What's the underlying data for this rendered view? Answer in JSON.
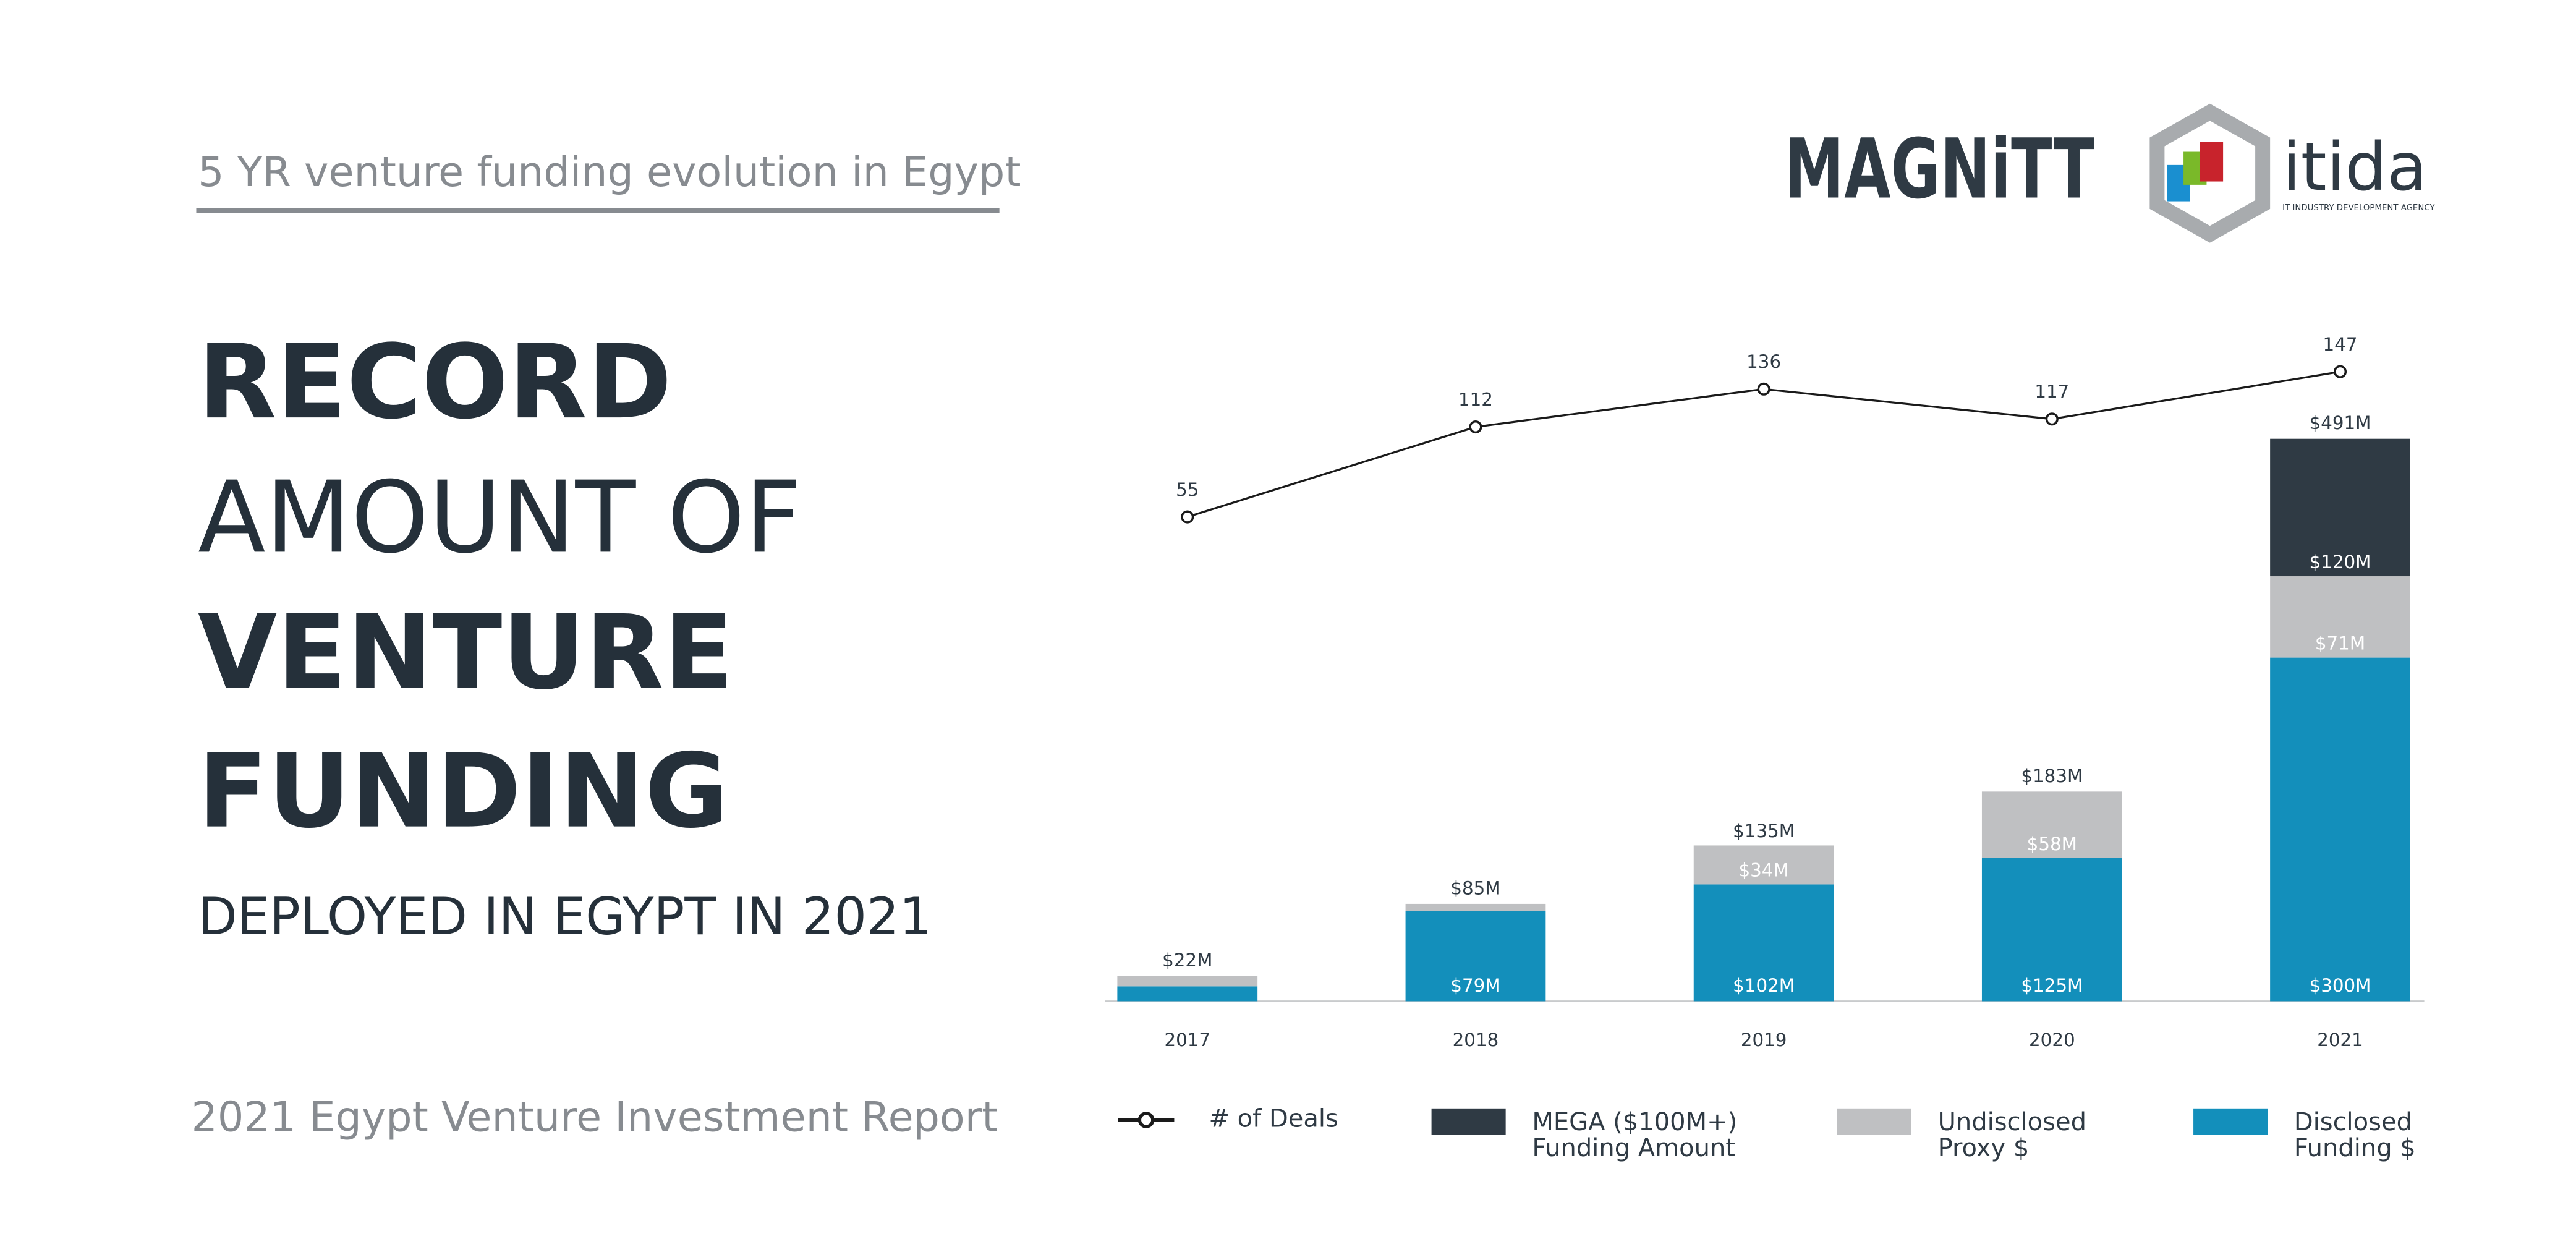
{
  "header": {
    "subtitle": "5 YR venture funding evolution in Egypt",
    "headline": [
      "RECORD",
      "AMOUNT OF",
      "VENTURE",
      "FUNDING"
    ],
    "tagline": "DEPLOYED IN EGYPT IN 2021",
    "report": "2021 Egypt Venture Investment Report"
  },
  "logos": {
    "magnitt": "MAGNiTT",
    "itida": "itida",
    "itida_sub": "IT INDUSTRY DEVELOPMENT AGENCY"
  },
  "chart_data": {
    "type": "bar",
    "categories": [
      "2017",
      "2018",
      "2019",
      "2020",
      "2021"
    ],
    "series": [
      {
        "name": "# of Deals",
        "type": "line",
        "color": "#1a1a1a",
        "values": [
          55,
          112,
          136,
          117,
          147
        ]
      },
      {
        "name": "MEGA ($100M+)\nFunding Amount",
        "color": "#2f3a44",
        "values": [
          null,
          null,
          null,
          null,
          120
        ],
        "value_labels": [
          null,
          null,
          null,
          null,
          "$120M"
        ]
      },
      {
        "name": "Undisclosed\nProxy $",
        "color": "#bfc0c2",
        "values": [
          9,
          6,
          34,
          58,
          71
        ],
        "value_labels": [
          null,
          null,
          "$34M",
          "$58M",
          "$71M"
        ]
      },
      {
        "name": "Disclosed\nFunding $",
        "color": "#138fbb",
        "values": [
          13,
          79,
          102,
          125,
          300
        ],
        "value_labels": [
          null,
          "$79M",
          "$102M",
          "$125M",
          "$300M"
        ]
      }
    ],
    "totals": [
      22,
      85,
      135,
      183,
      491
    ],
    "total_labels": [
      "$22M",
      "$85M",
      "$135M",
      "$183M",
      "$491M"
    ]
  }
}
